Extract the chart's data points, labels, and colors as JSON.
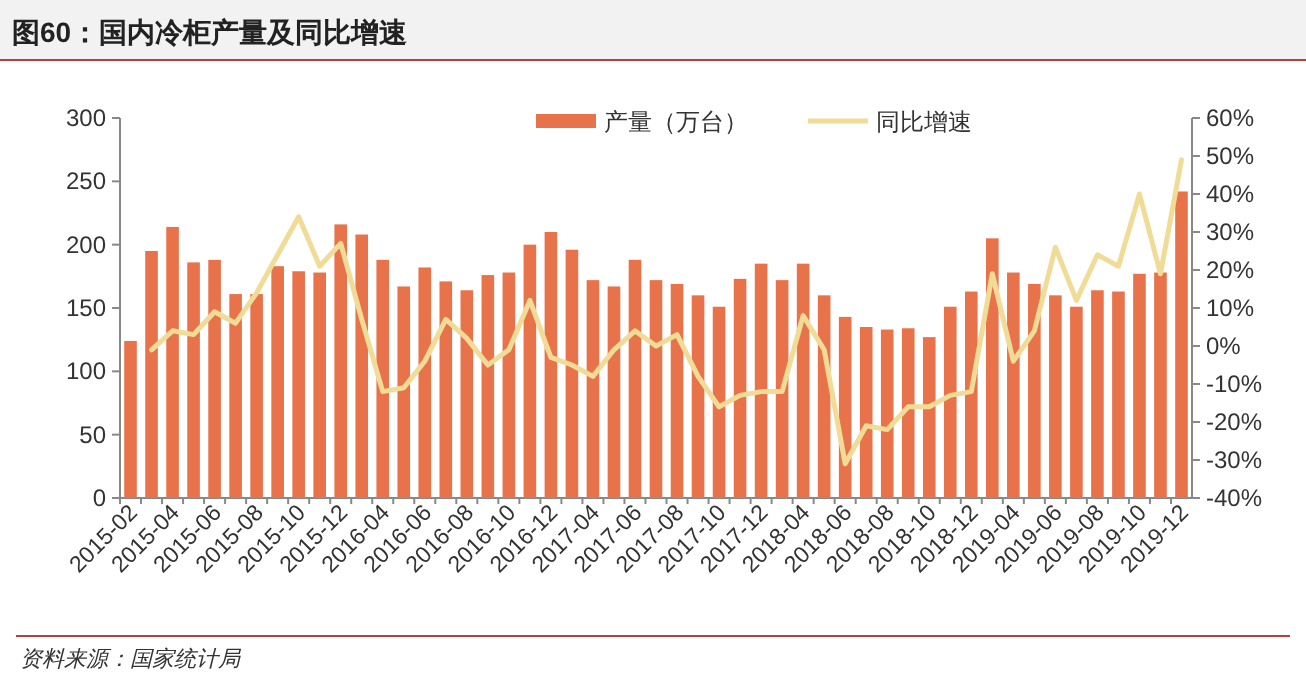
{
  "chart_data": {
    "type": "bar",
    "title": "图60：国内冷柜产量及同比增速",
    "categories": [
      "2015-02",
      null,
      "2015-04",
      null,
      "2015-06",
      null,
      "2015-08",
      null,
      "2015-10",
      null,
      "2015-12",
      null,
      "2016-04",
      null,
      "2016-06",
      null,
      "2016-08",
      null,
      "2016-10",
      null,
      "2016-12",
      null,
      "2017-04",
      null,
      "2017-06",
      null,
      "2017-08",
      null,
      "2017-10",
      null,
      "2017-12",
      null,
      "2018-04",
      null,
      "2018-06",
      null,
      "2018-08",
      null,
      "2018-10",
      null,
      "2018-12",
      null,
      "2019-04",
      null,
      "2019-06",
      null,
      "2019-08",
      null,
      "2019-10",
      null,
      "2019-12"
    ],
    "series": [
      {
        "name": "产量（万台）",
        "color": "#e8734a",
        "values": [
          124,
          195,
          214,
          186,
          188,
          161,
          161,
          183,
          179,
          178,
          216,
          208,
          188,
          167,
          182,
          171,
          164,
          176,
          178,
          200,
          210,
          196,
          172,
          167,
          188,
          172,
          169,
          160,
          151,
          173,
          185,
          172,
          185,
          160,
          143,
          135,
          133,
          134,
          127,
          151,
          163,
          205,
          178,
          169,
          160,
          151,
          164,
          163,
          177,
          178,
          242
        ]
      },
      {
        "name": "同比增速",
        "type": "line",
        "axis": "y2",
        "color": "#f0dc96",
        "values": [
          null,
          -1,
          4,
          3,
          9,
          6,
          14,
          24,
          34,
          21,
          27,
          7,
          -12,
          -11,
          -4,
          7,
          2,
          -5,
          -1,
          12,
          -3,
          -5,
          -8,
          -1,
          4,
          0,
          3,
          -8,
          -16,
          -13,
          -12,
          -12,
          8,
          -1,
          -31,
          -21,
          -22,
          -16,
          -16,
          -13,
          -12,
          19,
          -4,
          4,
          26,
          12,
          24,
          21,
          40,
          19,
          49
        ]
      }
    ],
    "ylim": [
      0,
      300
    ],
    "yticks": [
      0,
      50,
      100,
      150,
      200,
      250,
      300
    ],
    "y2lim": [
      -40,
      60
    ],
    "y2ticks": [
      {
        "value": -40,
        "label": "-40%"
      },
      {
        "value": -30,
        "label": "-30%"
      },
      {
        "value": -20,
        "label": "-20%"
      },
      {
        "value": -10,
        "label": "-10%"
      },
      {
        "value": 0,
        "label": "0%"
      },
      {
        "value": 10,
        "label": "10%"
      },
      {
        "value": 20,
        "label": "20%"
      },
      {
        "value": 30,
        "label": "30%"
      },
      {
        "value": 40,
        "label": "40%"
      },
      {
        "value": 50,
        "label": "50%"
      },
      {
        "value": 60,
        "label": "60%"
      }
    ],
    "legend": "top",
    "grid": false,
    "annotations": [
      "资料来源：国家统计局"
    ]
  }
}
